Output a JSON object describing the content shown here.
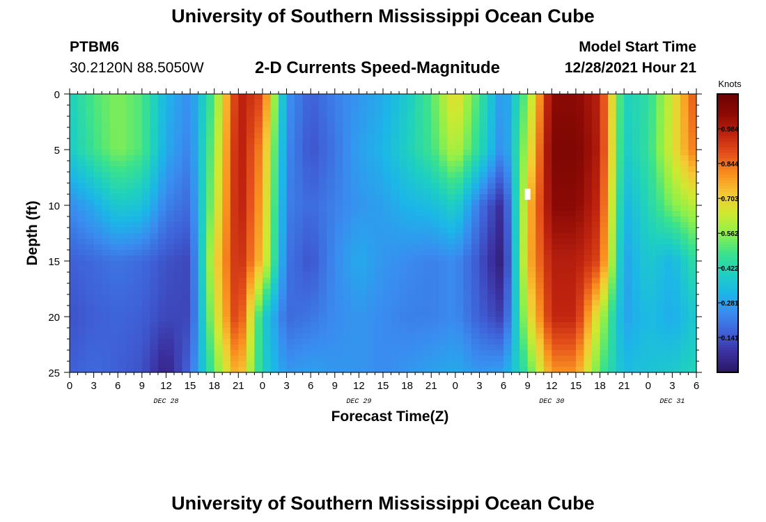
{
  "header": {
    "title": "University of Southern Mississippi Ocean Cube",
    "station_id": "PTBM6",
    "station_coords": "30.2120N  88.5050W",
    "plot_title": "2-D Currents Speed-Magnitude",
    "model_start_label": "Model Start Time",
    "model_start_value": "12/28/2021 Hour 21"
  },
  "footer": {
    "title": "University of Southern Mississippi Ocean Cube"
  },
  "chart_data": {
    "type": "heatmap",
    "title": "2-D Currents Speed-Magnitude",
    "xlabel": "Forecast Time(Z)",
    "ylabel": "Depth (ft)",
    "x_range_hours": [
      0,
      78
    ],
    "y_range_ft": [
      0,
      25
    ],
    "y_ticks": [
      "0",
      "5",
      "10",
      "15",
      "20",
      "25"
    ],
    "x_ticks": [
      "0",
      "3",
      "6",
      "9",
      "12",
      "15",
      "18",
      "21",
      "0",
      "3",
      "6",
      "9",
      "12",
      "15",
      "18",
      "21",
      "0",
      "3",
      "6",
      "9",
      "12",
      "15",
      "18",
      "21",
      "0",
      "3",
      "6"
    ],
    "date_labels": [
      {
        "text": "DEC 28",
        "hour": 12
      },
      {
        "text": "DEC 29",
        "hour": 36
      },
      {
        "text": "DEC 30",
        "hour": 60
      },
      {
        "text": "DEC 31",
        "hour": 75
      }
    ],
    "colorbar": {
      "unit": "Knots",
      "min": 0.0,
      "max": 1.125,
      "ticks": [
        "0.984",
        "0.844",
        "0.703",
        "0.562",
        "0.422",
        "0.281",
        "0.141"
      ],
      "palette": [
        "#2a1663",
        "#3b2f9e",
        "#3f5fd6",
        "#3a8cf0",
        "#1cb6e8",
        "#1fd0c0",
        "#3be28c",
        "#8ef04a",
        "#cfe931",
        "#f6c833",
        "#f98f1f",
        "#e4501a",
        "#bf230f",
        "#8d0a05",
        "#6b0303"
      ]
    },
    "speed_grid": {
      "depths_ft": [
        0,
        5,
        10,
        15,
        20,
        25
      ],
      "hours": [
        0,
        3,
        6,
        9,
        12,
        15,
        18,
        21,
        24,
        27,
        30,
        33,
        36,
        39,
        42,
        45,
        48,
        51,
        54,
        57,
        60,
        63,
        66,
        69,
        72,
        75,
        78
      ],
      "values": [
        [
          0.4,
          0.5,
          0.55,
          0.5,
          0.32,
          0.24,
          0.52,
          0.98,
          0.9,
          0.26,
          0.16,
          0.22,
          0.26,
          0.3,
          0.38,
          0.5,
          0.7,
          0.48,
          0.24,
          0.55,
          1.05,
          1.05,
          0.97,
          0.4,
          0.45,
          0.65,
          0.9
        ],
        [
          0.38,
          0.48,
          0.55,
          0.5,
          0.3,
          0.22,
          0.56,
          1.0,
          0.8,
          0.24,
          0.14,
          0.2,
          0.28,
          0.32,
          0.4,
          0.48,
          0.62,
          0.44,
          0.22,
          0.62,
          1.08,
          1.08,
          0.98,
          0.38,
          0.46,
          0.66,
          0.85
        ],
        [
          0.24,
          0.3,
          0.38,
          0.36,
          0.22,
          0.18,
          0.6,
          1.0,
          0.76,
          0.22,
          0.18,
          0.22,
          0.26,
          0.28,
          0.32,
          0.34,
          0.4,
          0.2,
          0.06,
          0.72,
          1.05,
          1.05,
          0.95,
          0.32,
          0.42,
          0.55,
          0.62
        ],
        [
          0.16,
          0.18,
          0.2,
          0.18,
          0.14,
          0.12,
          0.68,
          0.97,
          0.72,
          0.2,
          0.14,
          0.24,
          0.3,
          0.26,
          0.24,
          0.22,
          0.24,
          0.14,
          0.02,
          0.74,
          0.98,
          0.98,
          0.9,
          0.28,
          0.38,
          0.32,
          0.46
        ],
        [
          0.14,
          0.16,
          0.17,
          0.16,
          0.12,
          0.12,
          0.62,
          0.95,
          0.4,
          0.18,
          0.2,
          0.24,
          0.26,
          0.24,
          0.22,
          0.22,
          0.24,
          0.16,
          0.1,
          0.64,
          0.96,
          0.96,
          0.62,
          0.28,
          0.34,
          0.3,
          0.38
        ],
        [
          0.16,
          0.18,
          0.16,
          0.14,
          0.04,
          0.18,
          0.52,
          0.8,
          0.4,
          0.26,
          0.28,
          0.26,
          0.26,
          0.24,
          0.26,
          0.28,
          0.3,
          0.26,
          0.28,
          0.48,
          0.8,
          0.8,
          0.5,
          0.34,
          0.36,
          0.38,
          0.42
        ]
      ]
    },
    "annotations": [
      {
        "type": "marker",
        "hour": 57,
        "depth_ft": 9,
        "color": "#ffffff"
      }
    ]
  }
}
